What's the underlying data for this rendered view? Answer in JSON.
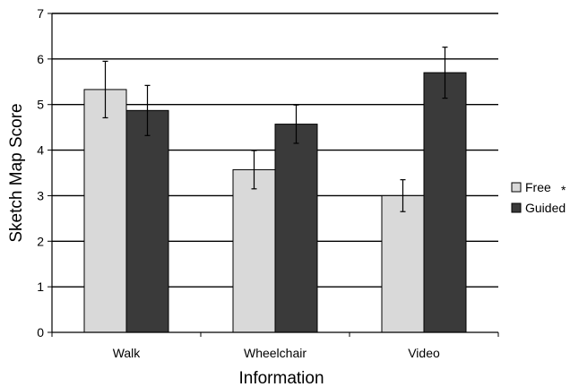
{
  "chart_data": {
    "type": "bar",
    "categories": [
      "Walk",
      "Wheelchair",
      "Video"
    ],
    "series": [
      {
        "name": "Free",
        "values": [
          5.33,
          3.57,
          3.0
        ],
        "errors": [
          0.62,
          0.42,
          0.35
        ],
        "color": "#d9d9d9"
      },
      {
        "name": "Guided",
        "values": [
          4.87,
          4.57,
          5.7
        ],
        "errors": [
          0.55,
          0.42,
          0.56
        ],
        "color": "#3a3a3a"
      }
    ],
    "xlabel": "Information",
    "ylabel": "Sketch Map Score",
    "ylim": [
      0,
      7
    ],
    "yticks": [
      "0",
      "1",
      "2",
      "3",
      "4",
      "5",
      "6",
      "7"
    ],
    "grid": true,
    "legend_position": "right",
    "legend_note": "*"
  }
}
